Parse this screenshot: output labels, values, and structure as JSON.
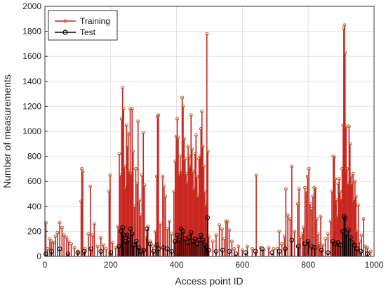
{
  "chart_data": {
    "type": "scatter",
    "subtype": "stem",
    "title": "",
    "xlabel": "Access point ID",
    "ylabel": "Number of measurements",
    "xlim": [
      0,
      1000
    ],
    "ylim": [
      0,
      2000
    ],
    "x_ticks": [
      "0",
      "200",
      "400",
      "600",
      "800",
      "1000"
    ],
    "y_ticks": [
      "0",
      "200",
      "400",
      "600",
      "800",
      "1000",
      "1200",
      "1400",
      "1600",
      "1800",
      "2000"
    ],
    "grid": true,
    "legend_position": "top-left",
    "series": [
      {
        "name": "Training",
        "color": "#c8261f",
        "marker_color": "#b8622e",
        "points": [
          {
            "x": 3,
            "y": 270
          },
          {
            "x": 8,
            "y": 60
          },
          {
            "x": 15,
            "y": 140
          },
          {
            "x": 20,
            "y": 120
          },
          {
            "x": 26,
            "y": 110
          },
          {
            "x": 32,
            "y": 160
          },
          {
            "x": 38,
            "y": 190
          },
          {
            "x": 45,
            "y": 270
          },
          {
            "x": 52,
            "y": 230
          },
          {
            "x": 58,
            "y": 170
          },
          {
            "x": 66,
            "y": 150
          },
          {
            "x": 72,
            "y": 120
          },
          {
            "x": 80,
            "y": 100
          },
          {
            "x": 90,
            "y": 70
          },
          {
            "x": 100,
            "y": 40
          },
          {
            "x": 110,
            "y": 440
          },
          {
            "x": 112,
            "y": 700
          },
          {
            "x": 115,
            "y": 680
          },
          {
            "x": 122,
            "y": 60
          },
          {
            "x": 132,
            "y": 180
          },
          {
            "x": 138,
            "y": 560
          },
          {
            "x": 145,
            "y": 170
          },
          {
            "x": 150,
            "y": 260
          },
          {
            "x": 160,
            "y": 80
          },
          {
            "x": 170,
            "y": 150
          },
          {
            "x": 178,
            "y": 90
          },
          {
            "x": 186,
            "y": 60
          },
          {
            "x": 195,
            "y": 520
          },
          {
            "x": 198,
            "y": 650
          },
          {
            "x": 205,
            "y": 110
          },
          {
            "x": 215,
            "y": 70
          },
          {
            "x": 222,
            "y": 240
          },
          {
            "x": 226,
            "y": 820
          },
          {
            "x": 229,
            "y": 650
          },
          {
            "x": 233,
            "y": 1100
          },
          {
            "x": 236,
            "y": 1350
          },
          {
            "x": 239,
            "y": 1180
          },
          {
            "x": 242,
            "y": 720
          },
          {
            "x": 245,
            "y": 550
          },
          {
            "x": 248,
            "y": 1050
          },
          {
            "x": 250,
            "y": 880
          },
          {
            "x": 253,
            "y": 980
          },
          {
            "x": 256,
            "y": 680
          },
          {
            "x": 259,
            "y": 1180
          },
          {
            "x": 262,
            "y": 660
          },
          {
            "x": 265,
            "y": 1180
          },
          {
            "x": 268,
            "y": 840
          },
          {
            "x": 272,
            "y": 400
          },
          {
            "x": 276,
            "y": 700
          },
          {
            "x": 280,
            "y": 580
          },
          {
            "x": 283,
            "y": 1080
          },
          {
            "x": 287,
            "y": 450
          },
          {
            "x": 291,
            "y": 330
          },
          {
            "x": 295,
            "y": 650
          },
          {
            "x": 299,
            "y": 990
          },
          {
            "x": 303,
            "y": 570
          },
          {
            "x": 308,
            "y": 150
          },
          {
            "x": 313,
            "y": 240
          },
          {
            "x": 320,
            "y": 120
          },
          {
            "x": 328,
            "y": 80
          },
          {
            "x": 336,
            "y": 200
          },
          {
            "x": 340,
            "y": 640
          },
          {
            "x": 342,
            "y": 1120
          },
          {
            "x": 345,
            "y": 1130
          },
          {
            "x": 350,
            "y": 260
          },
          {
            "x": 358,
            "y": 640
          },
          {
            "x": 362,
            "y": 560
          },
          {
            "x": 366,
            "y": 480
          },
          {
            "x": 372,
            "y": 220
          },
          {
            "x": 378,
            "y": 280
          },
          {
            "x": 384,
            "y": 180
          },
          {
            "x": 392,
            "y": 520
          },
          {
            "x": 396,
            "y": 760
          },
          {
            "x": 399,
            "y": 960
          },
          {
            "x": 402,
            "y": 1100
          },
          {
            "x": 405,
            "y": 950
          },
          {
            "x": 408,
            "y": 660
          },
          {
            "x": 411,
            "y": 800
          },
          {
            "x": 414,
            "y": 680
          },
          {
            "x": 417,
            "y": 1270
          },
          {
            "x": 420,
            "y": 1200
          },
          {
            "x": 423,
            "y": 940
          },
          {
            "x": 426,
            "y": 780
          },
          {
            "x": 429,
            "y": 660
          },
          {
            "x": 432,
            "y": 590
          },
          {
            "x": 435,
            "y": 880
          },
          {
            "x": 438,
            "y": 800
          },
          {
            "x": 441,
            "y": 720
          },
          {
            "x": 444,
            "y": 1130
          },
          {
            "x": 447,
            "y": 860
          },
          {
            "x": 450,
            "y": 680
          },
          {
            "x": 453,
            "y": 540
          },
          {
            "x": 456,
            "y": 820
          },
          {
            "x": 459,
            "y": 970
          },
          {
            "x": 462,
            "y": 640
          },
          {
            "x": 465,
            "y": 480
          },
          {
            "x": 468,
            "y": 780
          },
          {
            "x": 471,
            "y": 800
          },
          {
            "x": 474,
            "y": 1020
          },
          {
            "x": 477,
            "y": 1160
          },
          {
            "x": 480,
            "y": 880
          },
          {
            "x": 483,
            "y": 720
          },
          {
            "x": 486,
            "y": 520
          },
          {
            "x": 489,
            "y": 410
          },
          {
            "x": 492,
            "y": 1780
          },
          {
            "x": 495,
            "y": 840
          },
          {
            "x": 498,
            "y": 160
          },
          {
            "x": 510,
            "y": 120
          },
          {
            "x": 520,
            "y": 170
          },
          {
            "x": 530,
            "y": 250
          },
          {
            "x": 538,
            "y": 220
          },
          {
            "x": 545,
            "y": 140
          },
          {
            "x": 550,
            "y": 280
          },
          {
            "x": 555,
            "y": 280
          },
          {
            "x": 560,
            "y": 210
          },
          {
            "x": 568,
            "y": 120
          },
          {
            "x": 575,
            "y": 60
          },
          {
            "x": 588,
            "y": 80
          },
          {
            "x": 600,
            "y": 50
          },
          {
            "x": 615,
            "y": 80
          },
          {
            "x": 630,
            "y": 60
          },
          {
            "x": 642,
            "y": 650
          },
          {
            "x": 655,
            "y": 70
          },
          {
            "x": 665,
            "y": 50
          },
          {
            "x": 680,
            "y": 70
          },
          {
            "x": 695,
            "y": 60
          },
          {
            "x": 706,
            "y": 60
          },
          {
            "x": 712,
            "y": 200
          },
          {
            "x": 720,
            "y": 100
          },
          {
            "x": 728,
            "y": 160
          },
          {
            "x": 732,
            "y": 540
          },
          {
            "x": 738,
            "y": 330
          },
          {
            "x": 745,
            "y": 300
          },
          {
            "x": 750,
            "y": 720
          },
          {
            "x": 758,
            "y": 200
          },
          {
            "x": 768,
            "y": 420
          },
          {
            "x": 772,
            "y": 540
          },
          {
            "x": 776,
            "y": 150
          },
          {
            "x": 782,
            "y": 180
          },
          {
            "x": 786,
            "y": 230
          },
          {
            "x": 790,
            "y": 550
          },
          {
            "x": 794,
            "y": 520
          },
          {
            "x": 798,
            "y": 640
          },
          {
            "x": 802,
            "y": 700
          },
          {
            "x": 806,
            "y": 420
          },
          {
            "x": 810,
            "y": 380
          },
          {
            "x": 814,
            "y": 480
          },
          {
            "x": 818,
            "y": 550
          },
          {
            "x": 822,
            "y": 540
          },
          {
            "x": 826,
            "y": 300
          },
          {
            "x": 830,
            "y": 180
          },
          {
            "x": 834,
            "y": 100
          },
          {
            "x": 838,
            "y": 320
          },
          {
            "x": 844,
            "y": 90
          },
          {
            "x": 852,
            "y": 140
          },
          {
            "x": 860,
            "y": 180
          },
          {
            "x": 868,
            "y": 280
          },
          {
            "x": 872,
            "y": 520
          },
          {
            "x": 876,
            "y": 800
          },
          {
            "x": 879,
            "y": 790
          },
          {
            "x": 882,
            "y": 620
          },
          {
            "x": 885,
            "y": 450
          },
          {
            "x": 888,
            "y": 320
          },
          {
            "x": 891,
            "y": 580
          },
          {
            "x": 894,
            "y": 620
          },
          {
            "x": 897,
            "y": 520
          },
          {
            "x": 900,
            "y": 460
          },
          {
            "x": 903,
            "y": 700
          },
          {
            "x": 906,
            "y": 1050
          },
          {
            "x": 908,
            "y": 1820
          },
          {
            "x": 910,
            "y": 1850
          },
          {
            "x": 912,
            "y": 1630
          },
          {
            "x": 915,
            "y": 1040
          },
          {
            "x": 918,
            "y": 700
          },
          {
            "x": 921,
            "y": 580
          },
          {
            "x": 924,
            "y": 1040
          },
          {
            "x": 927,
            "y": 900
          },
          {
            "x": 930,
            "y": 640
          },
          {
            "x": 933,
            "y": 580
          },
          {
            "x": 936,
            "y": 660
          },
          {
            "x": 939,
            "y": 450
          },
          {
            "x": 942,
            "y": 600
          },
          {
            "x": 945,
            "y": 480
          },
          {
            "x": 948,
            "y": 200
          },
          {
            "x": 952,
            "y": 410
          },
          {
            "x": 956,
            "y": 120
          },
          {
            "x": 962,
            "y": 170
          },
          {
            "x": 968,
            "y": 300
          },
          {
            "x": 974,
            "y": 80
          },
          {
            "x": 980,
            "y": 70
          },
          {
            "x": 990,
            "y": 40
          }
        ]
      },
      {
        "name": "Test",
        "color": "#000000",
        "marker_color": "#000000",
        "points": [
          {
            "x": 3,
            "y": 20
          },
          {
            "x": 20,
            "y": 40
          },
          {
            "x": 45,
            "y": 60
          },
          {
            "x": 70,
            "y": 20
          },
          {
            "x": 100,
            "y": 30
          },
          {
            "x": 120,
            "y": 40
          },
          {
            "x": 140,
            "y": 60
          },
          {
            "x": 170,
            "y": 40
          },
          {
            "x": 200,
            "y": 30
          },
          {
            "x": 225,
            "y": 80
          },
          {
            "x": 232,
            "y": 200
          },
          {
            "x": 236,
            "y": 230
          },
          {
            "x": 240,
            "y": 170
          },
          {
            "x": 245,
            "y": 120
          },
          {
            "x": 250,
            "y": 170
          },
          {
            "x": 255,
            "y": 130
          },
          {
            "x": 260,
            "y": 220
          },
          {
            "x": 265,
            "y": 180
          },
          {
            "x": 270,
            "y": 90
          },
          {
            "x": 278,
            "y": 120
          },
          {
            "x": 285,
            "y": 70
          },
          {
            "x": 292,
            "y": 40
          },
          {
            "x": 300,
            "y": 50
          },
          {
            "x": 310,
            "y": 220
          },
          {
            "x": 320,
            "y": 100
          },
          {
            "x": 330,
            "y": 40
          },
          {
            "x": 340,
            "y": 90
          },
          {
            "x": 345,
            "y": 60
          },
          {
            "x": 360,
            "y": 70
          },
          {
            "x": 372,
            "y": 60
          },
          {
            "x": 385,
            "y": 40
          },
          {
            "x": 395,
            "y": 120
          },
          {
            "x": 402,
            "y": 170
          },
          {
            "x": 408,
            "y": 130
          },
          {
            "x": 414,
            "y": 220
          },
          {
            "x": 420,
            "y": 200
          },
          {
            "x": 426,
            "y": 140
          },
          {
            "x": 432,
            "y": 110
          },
          {
            "x": 438,
            "y": 150
          },
          {
            "x": 444,
            "y": 190
          },
          {
            "x": 450,
            "y": 120
          },
          {
            "x": 456,
            "y": 140
          },
          {
            "x": 462,
            "y": 100
          },
          {
            "x": 468,
            "y": 130
          },
          {
            "x": 474,
            "y": 170
          },
          {
            "x": 480,
            "y": 130
          },
          {
            "x": 486,
            "y": 90
          },
          {
            "x": 490,
            "y": 80
          },
          {
            "x": 494,
            "y": 310
          },
          {
            "x": 498,
            "y": 50
          },
          {
            "x": 520,
            "y": 40
          },
          {
            "x": 540,
            "y": 50
          },
          {
            "x": 560,
            "y": 40
          },
          {
            "x": 580,
            "y": 20
          },
          {
            "x": 610,
            "y": 30
          },
          {
            "x": 640,
            "y": 40
          },
          {
            "x": 660,
            "y": 60
          },
          {
            "x": 690,
            "y": 30
          },
          {
            "x": 712,
            "y": 40
          },
          {
            "x": 730,
            "y": 60
          },
          {
            "x": 750,
            "y": 130
          },
          {
            "x": 770,
            "y": 80
          },
          {
            "x": 790,
            "y": 100
          },
          {
            "x": 800,
            "y": 120
          },
          {
            "x": 810,
            "y": 80
          },
          {
            "x": 820,
            "y": 70
          },
          {
            "x": 840,
            "y": 50
          },
          {
            "x": 860,
            "y": 30
          },
          {
            "x": 875,
            "y": 120
          },
          {
            "x": 882,
            "y": 100
          },
          {
            "x": 890,
            "y": 110
          },
          {
            "x": 898,
            "y": 90
          },
          {
            "x": 905,
            "y": 200
          },
          {
            "x": 909,
            "y": 320
          },
          {
            "x": 912,
            "y": 300
          },
          {
            "x": 916,
            "y": 180
          },
          {
            "x": 922,
            "y": 210
          },
          {
            "x": 928,
            "y": 150
          },
          {
            "x": 934,
            "y": 110
          },
          {
            "x": 940,
            "y": 90
          },
          {
            "x": 948,
            "y": 60
          },
          {
            "x": 960,
            "y": 40
          },
          {
            "x": 980,
            "y": 20
          }
        ]
      }
    ]
  }
}
